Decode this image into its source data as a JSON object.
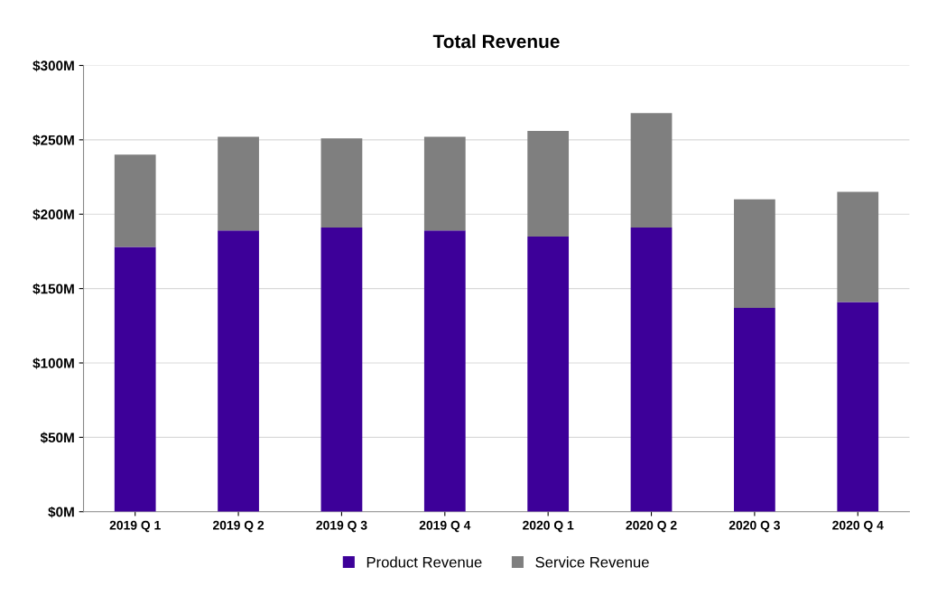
{
  "chart_data": {
    "type": "bar",
    "title": "Total Revenue",
    "stacked": true,
    "categories": [
      "2019 Q 1",
      "2019 Q 2",
      "2019 Q 3",
      "2019 Q 4",
      "2020 Q 1",
      "2020 Q 2",
      "2020 Q 3",
      "2020 Q 4"
    ],
    "series": [
      {
        "name": "Product Revenue",
        "color": "#3d0099",
        "values": [
          178,
          189,
          191,
          189,
          185,
          191,
          137,
          141
        ]
      },
      {
        "name": "Service Revenue",
        "color": "#7f7f7f",
        "values": [
          62,
          63,
          60,
          63,
          71,
          77,
          73,
          74
        ]
      }
    ],
    "ylim": [
      0,
      300
    ],
    "yticks": [
      {
        "value": 0,
        "label": "$0M"
      },
      {
        "value": 50,
        "label": "$50M"
      },
      {
        "value": 100,
        "label": "$100M"
      },
      {
        "value": 150,
        "label": "$150M"
      },
      {
        "value": 200,
        "label": "$200M"
      },
      {
        "value": 250,
        "label": "$250M"
      },
      {
        "value": 300,
        "label": "$300M"
      }
    ],
    "grid": "y",
    "legend": "bottom"
  }
}
